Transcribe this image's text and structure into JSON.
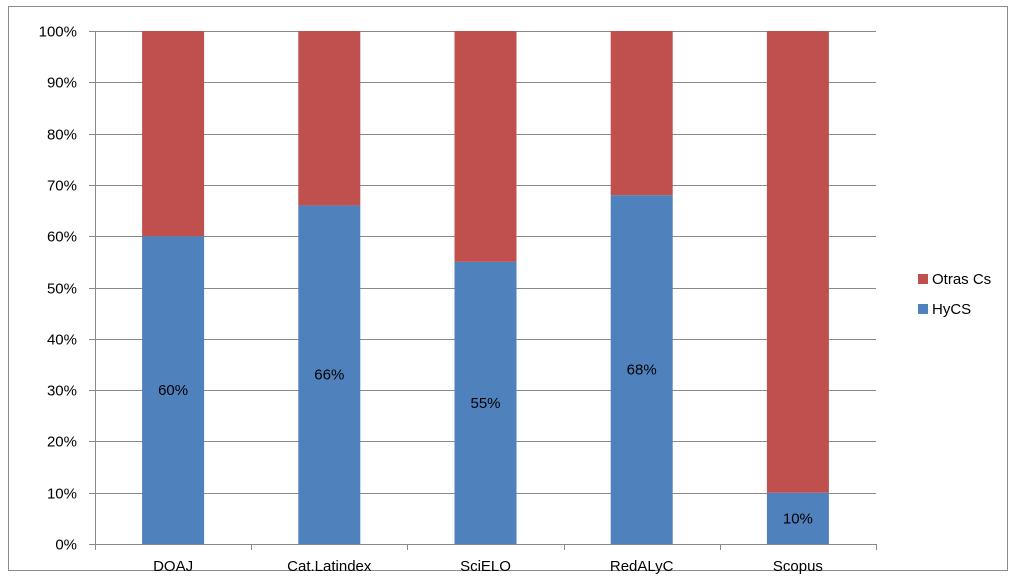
{
  "chart_data": {
    "type": "bar",
    "stacked": true,
    "percent": true,
    "categories": [
      "DOAJ",
      "Cat.Latindex",
      "SciELO",
      "RedALyC",
      "Scopus"
    ],
    "series": [
      {
        "name": "HyCS",
        "values": [
          60,
          66,
          55,
          68,
          10
        ],
        "color": "#4f81bd",
        "labels": [
          "60%",
          "66%",
          "55%",
          "68%",
          "10%"
        ]
      },
      {
        "name": "Otras Cs",
        "values": [
          40,
          34,
          45,
          32,
          90
        ],
        "color": "#c0504d"
      }
    ],
    "ylim": [
      0,
      100
    ],
    "y_ticks": [
      "0%",
      "10%",
      "20%",
      "30%",
      "40%",
      "50%",
      "60%",
      "70%",
      "80%",
      "90%",
      "100%"
    ],
    "grid": true,
    "legend": {
      "position": "right",
      "order": [
        "Otras Cs",
        "HyCS"
      ]
    },
    "title": "",
    "xlabel": "",
    "ylabel": ""
  }
}
